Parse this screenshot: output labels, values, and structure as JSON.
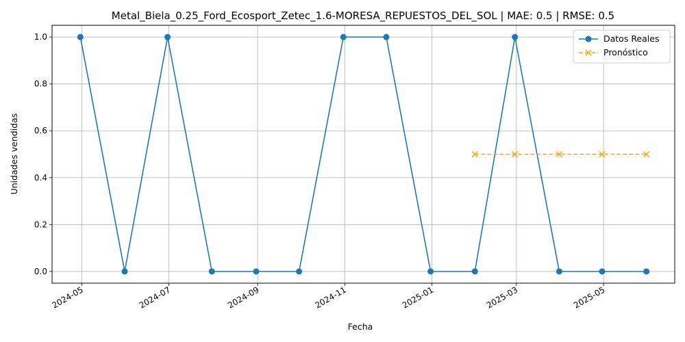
{
  "chart_data": {
    "type": "line",
    "title": "Metal_Biela_0.25_Ford_Ecosport_Zetec_1.6-MORESA_REPUESTOS_DEL_SOL | MAE: 0.5 | RMSE: 0.5",
    "xlabel": "Fecha",
    "ylabel": "Unidades vendidas",
    "ylim": [
      -0.05,
      1.05
    ],
    "y_ticks": [
      "0.0",
      "0.2",
      "0.4",
      "0.6",
      "0.8",
      "1.0"
    ],
    "x_ticks": [
      "2024-05",
      "2024-07",
      "2024-09",
      "2024-11",
      "2025-01",
      "2025-03",
      "2025-05"
    ],
    "grid": true,
    "legend_position": "top-right",
    "series": [
      {
        "name": "Datos Reales",
        "color": "#1f77b4",
        "linestyle": "solid",
        "marker": "circle",
        "x": [
          "2024-04-30",
          "2024-05-31",
          "2024-06-30",
          "2024-07-31",
          "2024-08-31",
          "2024-09-30",
          "2024-10-31",
          "2024-11-30",
          "2024-12-31",
          "2025-01-31",
          "2025-02-28",
          "2025-03-31",
          "2025-04-30",
          "2025-05-31"
        ],
        "values": [
          1,
          0,
          1,
          0,
          0,
          0,
          1,
          1,
          0,
          0,
          1,
          0,
          0,
          0
        ]
      },
      {
        "name": "Pronóstico",
        "color": "#ffa500",
        "linestyle": "dashed",
        "marker": "x",
        "x": [
          "2025-01-31",
          "2025-02-28",
          "2025-03-31",
          "2025-04-30",
          "2025-05-31"
        ],
        "values": [
          0.5,
          0.5,
          0.5,
          0.5,
          0.5
        ]
      }
    ]
  }
}
